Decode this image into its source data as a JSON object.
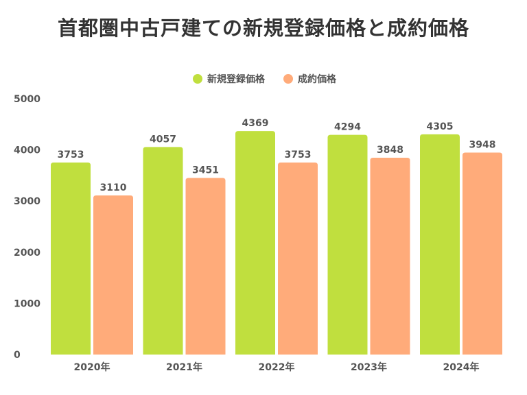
{
  "chart_data": {
    "type": "bar",
    "title": "首都圏中古戸建ての新規登録価格と成約価格",
    "categories": [
      "2020年",
      "2021年",
      "2022年",
      "2023年",
      "2024年"
    ],
    "series": [
      {
        "name": "新規登録価格",
        "color": "#c0df3e",
        "values": [
          3753,
          4057,
          4369,
          4294,
          4305
        ]
      },
      {
        "name": "成約価格",
        "color": "#ffab7a",
        "values": [
          3110,
          3451,
          3753,
          3848,
          3948
        ]
      }
    ],
    "yticks": [
      0,
      1000,
      2000,
      3000,
      4000,
      5000
    ],
    "ylim": [
      0,
      5000
    ],
    "xlabel": "",
    "ylabel": "",
    "grid": false,
    "legend": "top-center"
  }
}
